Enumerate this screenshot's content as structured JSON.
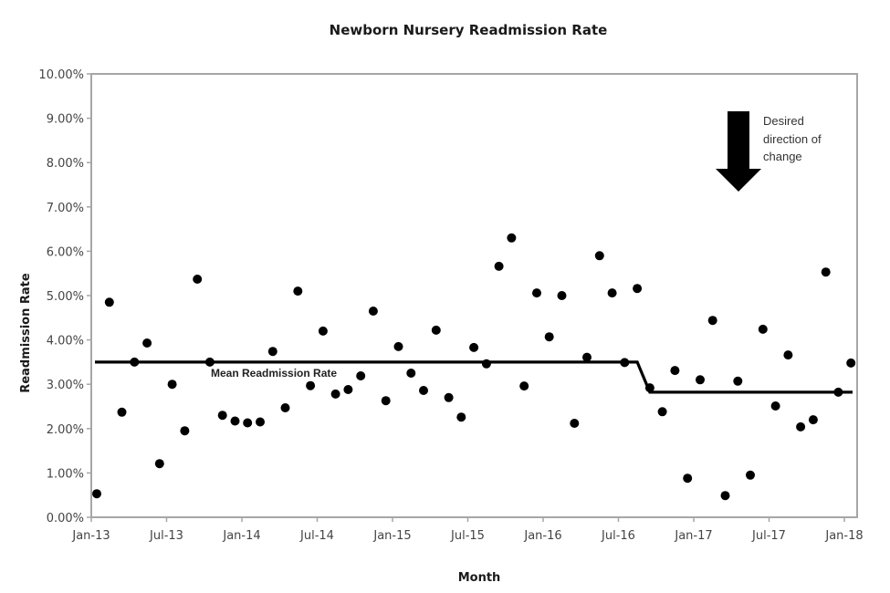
{
  "chart_data": {
    "type": "scatter",
    "title": "Newborn Nursery Readmission Rate",
    "xlabel": "Month",
    "ylabel": "Readmission Rate",
    "ylim": [
      0,
      10
    ],
    "y_ticks": [
      "0.00%",
      "1.00%",
      "2.00%",
      "3.00%",
      "4.00%",
      "5.00%",
      "6.00%",
      "7.00%",
      "8.00%",
      "9.00%",
      "10.00%"
    ],
    "x_ticks": [
      "Jan-13",
      "Jul-13",
      "Jan-14",
      "Jul-14",
      "Jan-15",
      "Jul-15",
      "Jan-16",
      "Jul-16",
      "Jan-17",
      "Jul-17",
      "Jan-18"
    ],
    "grid": false,
    "legend": null,
    "series": [
      {
        "name": "Readmission Rate",
        "style": "markers",
        "x": [
          "Jan-13",
          "Feb-13",
          "Mar-13",
          "Apr-13",
          "May-13",
          "Jun-13",
          "Jul-13",
          "Aug-13",
          "Sep-13",
          "Oct-13",
          "Nov-13",
          "Dec-13",
          "Jan-14",
          "Feb-14",
          "Mar-14",
          "Apr-14",
          "May-14",
          "Jun-14",
          "Jul-14",
          "Aug-14",
          "Sep-14",
          "Oct-14",
          "Nov-14",
          "Dec-14",
          "Jan-15",
          "Feb-15",
          "Mar-15",
          "Apr-15",
          "May-15",
          "Jun-15",
          "Jul-15",
          "Aug-15",
          "Sep-15",
          "Oct-15",
          "Nov-15",
          "Dec-15",
          "Jan-16",
          "Feb-16",
          "Mar-16",
          "Apr-16",
          "May-16",
          "Jun-16",
          "Jul-16",
          "Aug-16",
          "Sep-16",
          "Oct-16",
          "Nov-16",
          "Dec-16",
          "Jan-17",
          "Feb-17",
          "Mar-17",
          "Apr-17",
          "May-17",
          "Jun-17",
          "Jul-17",
          "Aug-17",
          "Sep-17",
          "Oct-17",
          "Nov-17",
          "Dec-17",
          "Jan-18"
        ],
        "values": [
          0.53,
          4.85,
          2.37,
          3.5,
          3.93,
          1.21,
          3.0,
          1.95,
          5.37,
          3.5,
          2.3,
          2.17,
          2.13,
          2.15,
          3.74,
          2.47,
          5.1,
          2.97,
          4.2,
          2.78,
          2.88,
          3.19,
          4.65,
          2.63,
          3.85,
          3.25,
          2.86,
          4.22,
          2.7,
          2.26,
          3.83,
          3.46,
          5.66,
          6.3,
          2.96,
          5.06,
          4.07,
          5.0,
          2.12,
          3.61,
          5.9,
          5.06,
          3.49,
          5.16,
          2.92,
          2.38,
          3.31,
          0.88,
          3.1,
          4.44,
          0.49,
          3.07,
          0.95,
          4.24,
          2.51,
          3.66,
          2.04,
          2.2,
          5.53,
          2.82,
          3.48
        ]
      },
      {
        "name": "Mean Readmission Rate",
        "style": "line",
        "segments": [
          {
            "from": "Jan-13",
            "to": "Aug-16",
            "value": 3.5
          },
          {
            "from": "Sep-16",
            "to": "Jan-18",
            "value": 2.82
          }
        ]
      }
    ],
    "annotations": [
      {
        "text": "Mean Readmission Rate",
        "near": "Jan-14",
        "value": 3.5
      },
      {
        "text": "Desired direction of change",
        "arrow": "down"
      }
    ]
  },
  "labels": {
    "title": "Newborn Nursery Readmission Rate",
    "xlabel": "Month",
    "ylabel": "Readmission Rate",
    "mean_label": "Mean Readmission Rate",
    "annotation_lines": [
      "Desired",
      "direction of",
      "change"
    ]
  },
  "colors": {
    "points": "#000000",
    "mean_line": "#000000",
    "axis": "#a6a6a6",
    "tick_text": "#444444"
  }
}
